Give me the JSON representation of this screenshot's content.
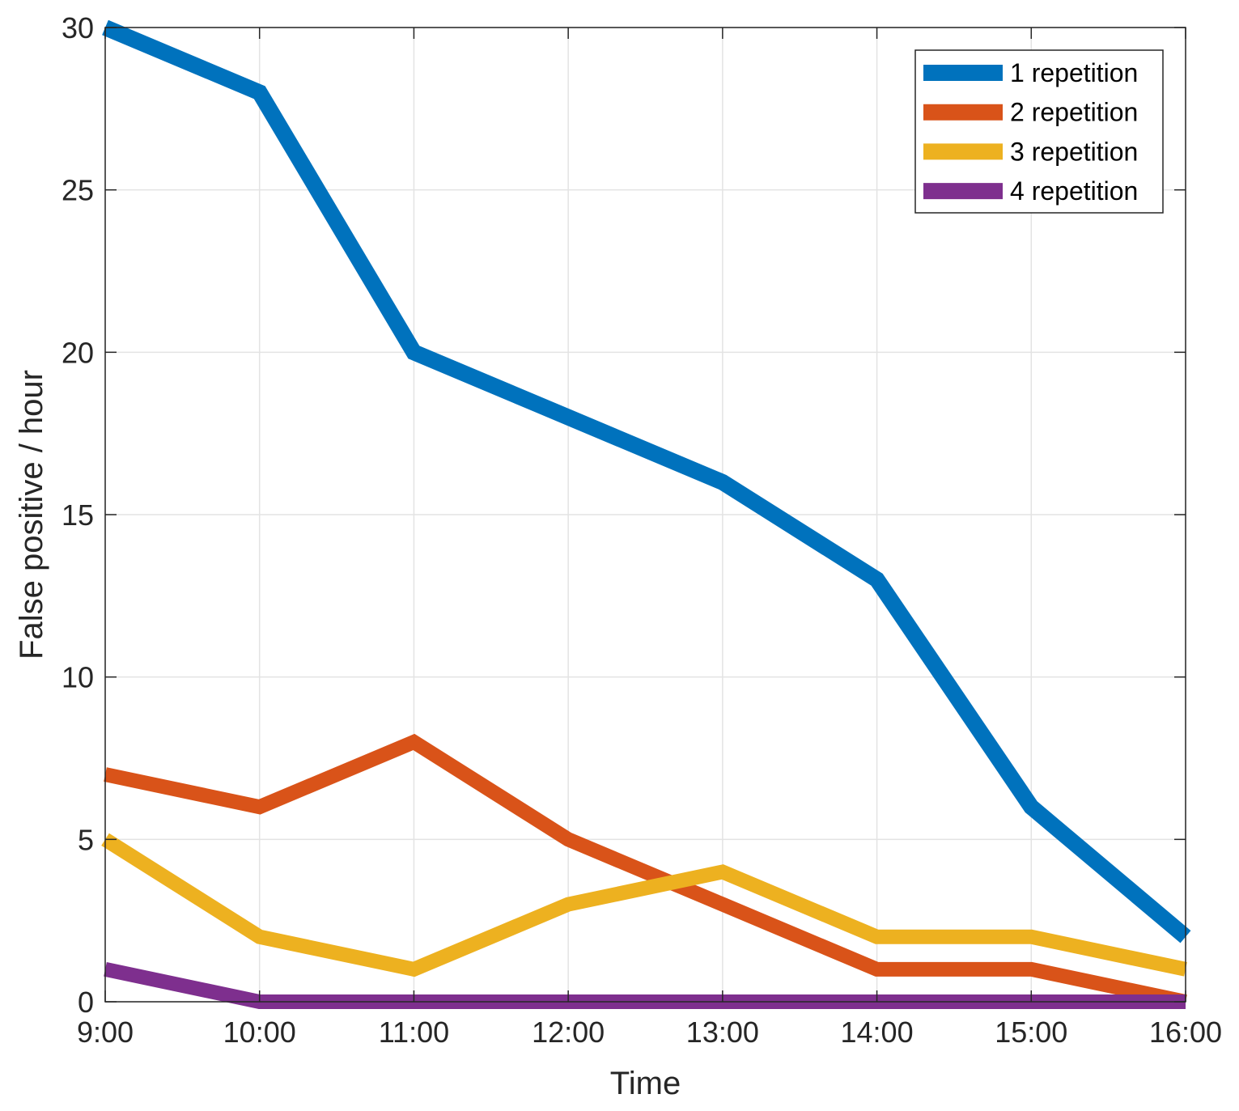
{
  "chart_data": {
    "type": "line",
    "title": "",
    "xlabel": "Time",
    "ylabel": "False positive / hour",
    "categories": [
      "9:00",
      "10:00",
      "11:00",
      "12:00",
      "13:00",
      "14:00",
      "15:00",
      "16:00"
    ],
    "ylim": [
      0,
      30
    ],
    "yticks": [
      0,
      5,
      10,
      15,
      20,
      25,
      30
    ],
    "grid": true,
    "legend_position": "top-right",
    "series": [
      {
        "name": "1 repetition",
        "color": "#0072BD",
        "values": [
          30,
          28,
          20,
          18,
          16,
          13,
          6,
          2
        ]
      },
      {
        "name": "2 repetition",
        "color": "#D95319",
        "values": [
          7,
          6,
          8,
          5,
          3,
          1,
          1,
          0
        ]
      },
      {
        "name": "3 repetition",
        "color": "#EDB120",
        "values": [
          5,
          2,
          1,
          3,
          4,
          2,
          2,
          1
        ]
      },
      {
        "name": "4 repetition",
        "color": "#7E2F8E",
        "values": [
          1,
          0,
          0,
          0,
          0,
          0,
          0,
          0
        ]
      }
    ]
  }
}
